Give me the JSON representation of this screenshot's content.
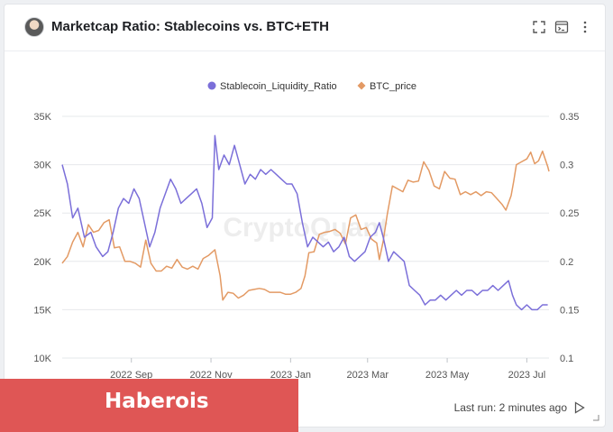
{
  "header": {
    "title": "Marketcap Ratio: Stablecoins vs. BTC+ETH",
    "icons": [
      "avatar",
      "fullscreen-icon",
      "console-icon",
      "more-vertical-icon"
    ]
  },
  "footer": {
    "last_run": "Last run: 2 minutes ago",
    "icons": [
      "play-icon",
      "resize-icon"
    ]
  },
  "overlay": {
    "label": "Haberois"
  },
  "watermark": "CryptoQuant",
  "colors": {
    "ratio": "#7b6fd9",
    "btc": "#e39a64",
    "overlay": "#df5655",
    "grid": "#e6e8eb"
  },
  "chart_data": {
    "type": "line",
    "title": "Marketcap Ratio: Stablecoins vs. BTC+ETH",
    "legend_position": "top-center",
    "grid": true,
    "x_axis": {
      "range": [
        "2022-07-10",
        "2023-07-18"
      ],
      "ticks": [
        {
          "date": "2022-09-01",
          "label": "2022 Sep"
        },
        {
          "date": "2022-11-01",
          "label": "2022 Nov"
        },
        {
          "date": "2023-01-01",
          "label": "2023 Jan"
        },
        {
          "date": "2023-03-01",
          "label": "2023 Mar"
        },
        {
          "date": "2023-05-01",
          "label": "2023 May"
        },
        {
          "date": "2023-07-01",
          "label": "2023 Jul"
        }
      ]
    },
    "y_left": {
      "range": [
        10000,
        35000
      ],
      "ticks": [
        "10K",
        "15K",
        "20K",
        "25K",
        "30K",
        "35K"
      ],
      "tick_values": [
        10000,
        15000,
        20000,
        25000,
        30000,
        35000
      ]
    },
    "y_right": {
      "range": [
        0.1,
        0.35
      ],
      "ticks": [
        "0.1",
        "0.15",
        "0.2",
        "0.25",
        "0.3",
        "0.35"
      ],
      "tick_values": [
        0.1,
        0.15,
        0.2,
        0.25,
        0.3,
        0.35
      ]
    },
    "series": [
      {
        "name": "Stablecoin_Liquidity_Ratio",
        "axis": "right",
        "color": "#7b6fd9",
        "points": [
          [
            "2022-07-10",
            0.3
          ],
          [
            "2022-07-14",
            0.28
          ],
          [
            "2022-07-18",
            0.245
          ],
          [
            "2022-07-22",
            0.255
          ],
          [
            "2022-07-27",
            0.225
          ],
          [
            "2022-08-01",
            0.23
          ],
          [
            "2022-08-05",
            0.215
          ],
          [
            "2022-08-10",
            0.205
          ],
          [
            "2022-08-14",
            0.21
          ],
          [
            "2022-08-18",
            0.23
          ],
          [
            "2022-08-22",
            0.255
          ],
          [
            "2022-08-26",
            0.265
          ],
          [
            "2022-08-30",
            0.26
          ],
          [
            "2022-09-03",
            0.275
          ],
          [
            "2022-09-07",
            0.265
          ],
          [
            "2022-09-11",
            0.24
          ],
          [
            "2022-09-15",
            0.215
          ],
          [
            "2022-09-19",
            0.23
          ],
          [
            "2022-09-23",
            0.255
          ],
          [
            "2022-09-27",
            0.27
          ],
          [
            "2022-10-01",
            0.285
          ],
          [
            "2022-10-05",
            0.275
          ],
          [
            "2022-10-09",
            0.26
          ],
          [
            "2022-10-13",
            0.265
          ],
          [
            "2022-10-17",
            0.27
          ],
          [
            "2022-10-21",
            0.275
          ],
          [
            "2022-10-25",
            0.26
          ],
          [
            "2022-10-29",
            0.235
          ],
          [
            "2022-11-02",
            0.245
          ],
          [
            "2022-11-04",
            0.33
          ],
          [
            "2022-11-07",
            0.295
          ],
          [
            "2022-11-11",
            0.31
          ],
          [
            "2022-11-15",
            0.3
          ],
          [
            "2022-11-19",
            0.32
          ],
          [
            "2022-11-23",
            0.3
          ],
          [
            "2022-11-27",
            0.28
          ],
          [
            "2022-12-01",
            0.29
          ],
          [
            "2022-12-05",
            0.285
          ],
          [
            "2022-12-09",
            0.295
          ],
          [
            "2022-12-13",
            0.29
          ],
          [
            "2022-12-17",
            0.295
          ],
          [
            "2022-12-21",
            0.29
          ],
          [
            "2022-12-25",
            0.285
          ],
          [
            "2022-12-29",
            0.28
          ],
          [
            "2023-01-02",
            0.28
          ],
          [
            "2023-01-06",
            0.27
          ],
          [
            "2023-01-10",
            0.24
          ],
          [
            "2023-01-14",
            0.215
          ],
          [
            "2023-01-18",
            0.225
          ],
          [
            "2023-01-22",
            0.22
          ],
          [
            "2023-01-26",
            0.215
          ],
          [
            "2023-01-30",
            0.22
          ],
          [
            "2023-02-03",
            0.21
          ],
          [
            "2023-02-07",
            0.215
          ],
          [
            "2023-02-11",
            0.225
          ],
          [
            "2023-02-15",
            0.205
          ],
          [
            "2023-02-19",
            0.2
          ],
          [
            "2023-02-23",
            0.205
          ],
          [
            "2023-02-27",
            0.21
          ],
          [
            "2023-03-03",
            0.225
          ],
          [
            "2023-03-07",
            0.23
          ],
          [
            "2023-03-10",
            0.24
          ],
          [
            "2023-03-13",
            0.225
          ],
          [
            "2023-03-17",
            0.2
          ],
          [
            "2023-03-21",
            0.21
          ],
          [
            "2023-03-25",
            0.205
          ],
          [
            "2023-03-29",
            0.2
          ],
          [
            "2023-04-02",
            0.175
          ],
          [
            "2023-04-06",
            0.17
          ],
          [
            "2023-04-10",
            0.165
          ],
          [
            "2023-04-14",
            0.155
          ],
          [
            "2023-04-18",
            0.16
          ],
          [
            "2023-04-22",
            0.16
          ],
          [
            "2023-04-26",
            0.165
          ],
          [
            "2023-04-30",
            0.16
          ],
          [
            "2023-05-04",
            0.165
          ],
          [
            "2023-05-08",
            0.17
          ],
          [
            "2023-05-12",
            0.165
          ],
          [
            "2023-05-16",
            0.17
          ],
          [
            "2023-05-20",
            0.17
          ],
          [
            "2023-05-24",
            0.165
          ],
          [
            "2023-05-28",
            0.17
          ],
          [
            "2023-06-01",
            0.17
          ],
          [
            "2023-06-05",
            0.175
          ],
          [
            "2023-06-09",
            0.17
          ],
          [
            "2023-06-13",
            0.175
          ],
          [
            "2023-06-17",
            0.18
          ],
          [
            "2023-06-20",
            0.165
          ],
          [
            "2023-06-23",
            0.155
          ],
          [
            "2023-06-27",
            0.15
          ],
          [
            "2023-07-01",
            0.155
          ],
          [
            "2023-07-05",
            0.15
          ],
          [
            "2023-07-09",
            0.15
          ],
          [
            "2023-07-13",
            0.155
          ],
          [
            "2023-07-17",
            0.155
          ]
        ]
      },
      {
        "name": "BTC_price",
        "axis": "left",
        "color": "#e39a64",
        "points": [
          [
            "2022-07-10",
            19800
          ],
          [
            "2022-07-14",
            20500
          ],
          [
            "2022-07-18",
            22000
          ],
          [
            "2022-07-22",
            23000
          ],
          [
            "2022-07-26",
            21500
          ],
          [
            "2022-07-30",
            23800
          ],
          [
            "2022-08-03",
            23000
          ],
          [
            "2022-08-07",
            23200
          ],
          [
            "2022-08-11",
            24000
          ],
          [
            "2022-08-15",
            24300
          ],
          [
            "2022-08-19",
            21400
          ],
          [
            "2022-08-23",
            21500
          ],
          [
            "2022-08-27",
            20000
          ],
          [
            "2022-08-31",
            20000
          ],
          [
            "2022-09-04",
            19800
          ],
          [
            "2022-09-08",
            19400
          ],
          [
            "2022-09-12",
            22200
          ],
          [
            "2022-09-16",
            19800
          ],
          [
            "2022-09-20",
            19000
          ],
          [
            "2022-09-24",
            19000
          ],
          [
            "2022-09-28",
            19500
          ],
          [
            "2022-10-02",
            19300
          ],
          [
            "2022-10-06",
            20200
          ],
          [
            "2022-10-10",
            19400
          ],
          [
            "2022-10-14",
            19200
          ],
          [
            "2022-10-18",
            19500
          ],
          [
            "2022-10-22",
            19200
          ],
          [
            "2022-10-26",
            20300
          ],
          [
            "2022-10-30",
            20600
          ],
          [
            "2022-11-04",
            21200
          ],
          [
            "2022-11-08",
            18500
          ],
          [
            "2022-11-10",
            16000
          ],
          [
            "2022-11-14",
            16800
          ],
          [
            "2022-11-18",
            16700
          ],
          [
            "2022-11-22",
            16200
          ],
          [
            "2022-11-26",
            16500
          ],
          [
            "2022-11-30",
            17000
          ],
          [
            "2022-12-04",
            17100
          ],
          [
            "2022-12-08",
            17200
          ],
          [
            "2022-12-12",
            17100
          ],
          [
            "2022-12-16",
            16800
          ],
          [
            "2022-12-20",
            16800
          ],
          [
            "2022-12-24",
            16800
          ],
          [
            "2022-12-28",
            16600
          ],
          [
            "2023-01-01",
            16600
          ],
          [
            "2023-01-05",
            16800
          ],
          [
            "2023-01-09",
            17200
          ],
          [
            "2023-01-12",
            18500
          ],
          [
            "2023-01-15",
            20900
          ],
          [
            "2023-01-19",
            21000
          ],
          [
            "2023-01-23",
            22800
          ],
          [
            "2023-01-27",
            23000
          ],
          [
            "2023-01-31",
            23100
          ],
          [
            "2023-02-04",
            23300
          ],
          [
            "2023-02-08",
            22900
          ],
          [
            "2023-02-12",
            21800
          ],
          [
            "2023-02-16",
            24500
          ],
          [
            "2023-02-20",
            24800
          ],
          [
            "2023-02-24",
            23300
          ],
          [
            "2023-02-28",
            23500
          ],
          [
            "2023-03-04",
            22300
          ],
          [
            "2023-03-08",
            21900
          ],
          [
            "2023-03-10",
            20200
          ],
          [
            "2023-03-13",
            22100
          ],
          [
            "2023-03-16",
            24800
          ],
          [
            "2023-03-20",
            27800
          ],
          [
            "2023-03-24",
            27500
          ],
          [
            "2023-03-28",
            27200
          ],
          [
            "2023-04-01",
            28400
          ],
          [
            "2023-04-05",
            28200
          ],
          [
            "2023-04-09",
            28300
          ],
          [
            "2023-04-13",
            30300
          ],
          [
            "2023-04-17",
            29400
          ],
          [
            "2023-04-21",
            27800
          ],
          [
            "2023-04-25",
            27500
          ],
          [
            "2023-04-29",
            29300
          ],
          [
            "2023-05-03",
            28600
          ],
          [
            "2023-05-07",
            28500
          ],
          [
            "2023-05-11",
            26900
          ],
          [
            "2023-05-15",
            27200
          ],
          [
            "2023-05-19",
            26900
          ],
          [
            "2023-05-23",
            27200
          ],
          [
            "2023-05-27",
            26800
          ],
          [
            "2023-05-31",
            27200
          ],
          [
            "2023-06-04",
            27100
          ],
          [
            "2023-06-08",
            26500
          ],
          [
            "2023-06-12",
            25900
          ],
          [
            "2023-06-15",
            25300
          ],
          [
            "2023-06-19",
            26800
          ],
          [
            "2023-06-21",
            28300
          ],
          [
            "2023-06-23",
            30000
          ],
          [
            "2023-06-27",
            30300
          ],
          [
            "2023-07-01",
            30600
          ],
          [
            "2023-07-04",
            31300
          ],
          [
            "2023-07-07",
            30100
          ],
          [
            "2023-07-10",
            30400
          ],
          [
            "2023-07-13",
            31400
          ],
          [
            "2023-07-17",
            29800
          ],
          [
            "2023-07-18",
            29300
          ]
        ]
      }
    ]
  }
}
